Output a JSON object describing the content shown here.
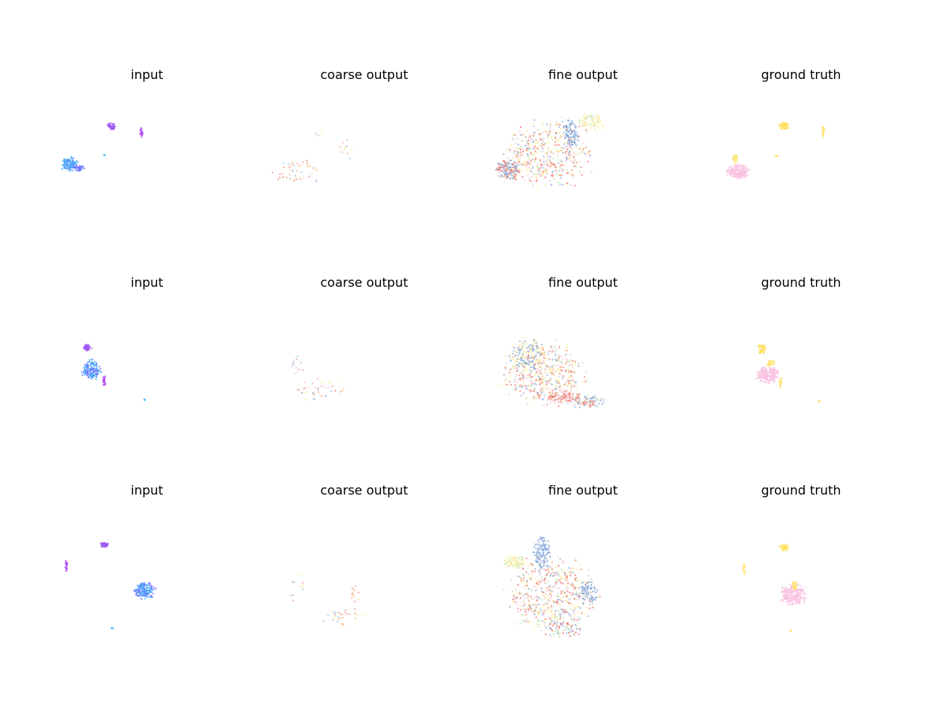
{
  "figure": {
    "rows": [
      {
        "titles": [
          "input",
          "coarse output",
          "fine output",
          "ground truth"
        ]
      },
      {
        "titles": [
          "input",
          "coarse output",
          "fine output",
          "ground truth"
        ]
      },
      {
        "titles": [
          "input",
          "coarse output",
          "fine output",
          "ground truth"
        ]
      }
    ]
  },
  "chart_data": {
    "type": "scatter",
    "description_note": "",
    "grid": false,
    "axes_visible": false,
    "panels": [
      {
        "row": 0,
        "col": 0,
        "title": "input",
        "clusters": [
          {
            "cx": 22,
            "cy": 93,
            "rx": 12,
            "ry": 10,
            "n": 140,
            "colors": [
              "#4fb7ff",
              "#6f8bff",
              "#3fa9f5"
            ]
          },
          {
            "cx": 35,
            "cy": 98,
            "rx": 8,
            "ry": 4,
            "n": 40,
            "colors": [
              "#7a6cff",
              "#6f8bff"
            ]
          },
          {
            "cx": 75,
            "cy": 45,
            "rx": 6,
            "ry": 5,
            "n": 45,
            "colors": [
              "#a05cf5",
              "#9a55f0"
            ]
          },
          {
            "cx": 113,
            "cy": 52,
            "rx": 2,
            "ry": 8,
            "n": 25,
            "colors": [
              "#b04ef2"
            ]
          },
          {
            "cx": 66,
            "cy": 81,
            "rx": 1.5,
            "ry": 1,
            "n": 4,
            "colors": [
              "#3fc0ff"
            ]
          }
        ]
      },
      {
        "row": 0,
        "col": 1,
        "title": "coarse output",
        "clusters": [
          {
            "cx": 35,
            "cy": 102,
            "rx": 36,
            "ry": 18,
            "n": 45,
            "colors": [
              "#f7b58f",
              "#f1a3a3",
              "#a6c4ea",
              "#ffe59a",
              "#f58f7c"
            ]
          },
          {
            "cx": 100,
            "cy": 70,
            "rx": 14,
            "ry": 18,
            "n": 10,
            "colors": [
              "#f7b58f",
              "#ffe59a",
              "#a6c4ea"
            ]
          },
          {
            "cx": 60,
            "cy": 55,
            "rx": 8,
            "ry": 4,
            "n": 4,
            "colors": [
              "#ffe59a",
              "#a6c4ea"
            ]
          }
        ]
      },
      {
        "row": 0,
        "col": 2,
        "title": "fine output",
        "clusters": [
          {
            "cx": 75,
            "cy": 80,
            "rx": 65,
            "ry": 50,
            "n": 500,
            "colors": [
              "#fffab0",
              "#ffe59a",
              "#f58f7c",
              "#9ab6e0",
              "#cfe8b8",
              "#d7d7d7",
              "#f7c6de",
              "#ef7d6d"
            ]
          },
          {
            "cx": 25,
            "cy": 100,
            "rx": 17,
            "ry": 14,
            "n": 180,
            "colors": [
              "#f58f7c",
              "#9ab6e0",
              "#7fa2d8",
              "#d7d7d7",
              "#ef7d6d"
            ]
          },
          {
            "cx": 105,
            "cy": 55,
            "rx": 12,
            "ry": 20,
            "n": 80,
            "colors": [
              "#9ab6e0",
              "#7fa2d8"
            ]
          },
          {
            "cx": 130,
            "cy": 40,
            "rx": 18,
            "ry": 14,
            "n": 80,
            "colors": [
              "#ffe59a",
              "#fffab0",
              "#cfe8b8"
            ]
          }
        ]
      },
      {
        "row": 0,
        "col": 3,
        "title": "ground truth",
        "clusters": [
          {
            "cx": 40,
            "cy": 102,
            "rx": 16,
            "ry": 10,
            "n": 220,
            "colors": [
              "#f9c6e3",
              "#f7bfe0"
            ]
          },
          {
            "cx": 37,
            "cy": 86,
            "rx": 4,
            "ry": 6,
            "n": 30,
            "colors": [
              "#ffe46e"
            ]
          },
          {
            "cx": 98,
            "cy": 45,
            "rx": 7,
            "ry": 6,
            "n": 55,
            "colors": [
              "#ffe46e",
              "#ffdf5a"
            ]
          },
          {
            "cx": 148,
            "cy": 52,
            "rx": 2,
            "ry": 8,
            "n": 22,
            "colors": [
              "#ffe46e"
            ]
          },
          {
            "cx": 88,
            "cy": 82,
            "rx": 3,
            "ry": 1,
            "n": 5,
            "colors": [
              "#ffe46e"
            ]
          }
        ]
      },
      {
        "row": 1,
        "col": 0,
        "title": "input",
        "clusters": [
          {
            "cx": 50,
            "cy": 90,
            "rx": 14,
            "ry": 14,
            "n": 170,
            "colors": [
              "#4fb7ff",
              "#6f8bff",
              "#7a6cff",
              "#3fa9f5"
            ]
          },
          {
            "cx": 44,
            "cy": 62,
            "rx": 6,
            "ry": 5,
            "n": 45,
            "colors": [
              "#a05cf5",
              "#9a55f0"
            ]
          },
          {
            "cx": 66,
            "cy": 104,
            "rx": 2.5,
            "ry": 8,
            "n": 25,
            "colors": [
              "#b04ef2"
            ]
          },
          {
            "cx": 117,
            "cy": 128,
            "rx": 2,
            "ry": 1,
            "n": 4,
            "colors": [
              "#3fc0ff"
            ]
          }
        ]
      },
      {
        "row": 1,
        "col": 1,
        "title": "coarse output",
        "clusters": [
          {
            "cx": 65,
            "cy": 115,
            "rx": 45,
            "ry": 18,
            "n": 40,
            "colors": [
              "#f7b58f",
              "#f1a3a3",
              "#a6c4ea",
              "#ffe59a",
              "#f5c6dc"
            ]
          },
          {
            "cx": 35,
            "cy": 85,
            "rx": 12,
            "ry": 20,
            "n": 12,
            "colors": [
              "#f1a3a3",
              "#a6c4ea",
              "#f7c6de"
            ]
          }
        ]
      },
      {
        "row": 1,
        "col": 2,
        "title": "fine output",
        "clusters": [
          {
            "cx": 70,
            "cy": 95,
            "rx": 60,
            "ry": 45,
            "n": 500,
            "colors": [
              "#fffab0",
              "#ffe59a",
              "#f58f7c",
              "#9ab6e0",
              "#cfe8b8",
              "#d7d7d7",
              "#f7c6de",
              "#ef7d6d"
            ]
          },
          {
            "cx": 50,
            "cy": 70,
            "rx": 25,
            "ry": 25,
            "n": 150,
            "colors": [
              "#9ab6e0",
              "#7fa2d8",
              "#ffe59a",
              "#fffab0"
            ]
          },
          {
            "cx": 125,
            "cy": 130,
            "rx": 25,
            "ry": 10,
            "n": 100,
            "colors": [
              "#d7d7d7",
              "#c9d9c0",
              "#9ab6e0",
              "#ef7d6d"
            ]
          },
          {
            "cx": 95,
            "cy": 125,
            "rx": 25,
            "ry": 8,
            "n": 80,
            "colors": [
              "#ef7d6d",
              "#f58f7c",
              "#f7c6de"
            ]
          }
        ]
      },
      {
        "row": 1,
        "col": 3,
        "title": "ground truth",
        "clusters": [
          {
            "cx": 78,
            "cy": 96,
            "rx": 17,
            "ry": 12,
            "n": 220,
            "colors": [
              "#f9c6e3",
              "#f7bfe0"
            ]
          },
          {
            "cx": 71,
            "cy": 64,
            "rx": 7,
            "ry": 7,
            "n": 50,
            "colors": [
              "#ffe46e",
              "#ffdf5a"
            ]
          },
          {
            "cx": 82,
            "cy": 82,
            "rx": 6,
            "ry": 5,
            "n": 30,
            "colors": [
              "#ffe46e"
            ]
          },
          {
            "cx": 94,
            "cy": 106,
            "rx": 2,
            "ry": 8,
            "n": 22,
            "colors": [
              "#ffe46e"
            ]
          },
          {
            "cx": 143,
            "cy": 130,
            "rx": 3,
            "ry": 1,
            "n": 4,
            "colors": [
              "#ffe46e"
            ]
          }
        ]
      },
      {
        "row": 2,
        "col": 0,
        "title": "input",
        "clusters": [
          {
            "cx": 117,
            "cy": 106,
            "rx": 15,
            "ry": 13,
            "n": 170,
            "colors": [
              "#4fb7ff",
              "#6f8bff",
              "#7a6cff",
              "#3fa9f5"
            ]
          },
          {
            "cx": 66,
            "cy": 49,
            "rx": 6,
            "ry": 4,
            "n": 40,
            "colors": [
              "#a05cf5",
              "#9a55f0"
            ]
          },
          {
            "cx": 18,
            "cy": 75,
            "rx": 2,
            "ry": 9,
            "n": 22,
            "colors": [
              "#b04ef2"
            ]
          },
          {
            "cx": 76,
            "cy": 154,
            "rx": 2,
            "ry": 1,
            "n": 4,
            "colors": [
              "#3fc0ff"
            ]
          }
        ]
      },
      {
        "row": 2,
        "col": 1,
        "title": "coarse output",
        "clusters": [
          {
            "cx": 95,
            "cy": 140,
            "rx": 30,
            "ry": 14,
            "n": 30,
            "colors": [
              "#f7b58f",
              "#f1a3a3",
              "#a6c4ea",
              "#ffe59a"
            ]
          },
          {
            "cx": 108,
            "cy": 110,
            "rx": 12,
            "ry": 14,
            "n": 14,
            "colors": [
              "#f7b58f",
              "#f1a3a3",
              "#ffe59a"
            ]
          },
          {
            "cx": 35,
            "cy": 100,
            "rx": 15,
            "ry": 30,
            "n": 10,
            "colors": [
              "#f1a3a3",
              "#a6c4ea",
              "#ffe59a"
            ]
          }
        ]
      },
      {
        "row": 2,
        "col": 2,
        "title": "fine output",
        "clusters": [
          {
            "cx": 80,
            "cy": 110,
            "rx": 65,
            "ry": 55,
            "n": 520,
            "colors": [
              "#fffab0",
              "#ffe59a",
              "#f58f7c",
              "#9ab6e0",
              "#cfe8b8",
              "#d7d7d7",
              "#f7c6de",
              "#ef7d6d"
            ]
          },
          {
            "cx": 68,
            "cy": 60,
            "rx": 12,
            "ry": 25,
            "n": 110,
            "colors": [
              "#9ab6e0",
              "#7fa2d8"
            ]
          },
          {
            "cx": 35,
            "cy": 70,
            "rx": 18,
            "ry": 10,
            "n": 80,
            "colors": [
              "#ffe59a",
              "#cfe8b8",
              "#fffab0"
            ]
          },
          {
            "cx": 128,
            "cy": 110,
            "rx": 14,
            "ry": 20,
            "n": 100,
            "colors": [
              "#7fa2d8",
              "#9ab6e0",
              "#d7d7d7"
            ]
          },
          {
            "cx": 95,
            "cy": 150,
            "rx": 30,
            "ry": 20,
            "n": 100,
            "colors": [
              "#d7d7d7",
              "#9ab6e0",
              "#ef7d6d",
              "#cfe8b8"
            ]
          }
        ]
      },
      {
        "row": 2,
        "col": 3,
        "title": "ground truth",
        "clusters": [
          {
            "cx": 110,
            "cy": 112,
            "rx": 19,
            "ry": 15,
            "n": 230,
            "colors": [
              "#f9c6e3",
              "#f7bfe0"
            ]
          },
          {
            "cx": 98,
            "cy": 52,
            "rx": 7,
            "ry": 5,
            "n": 45,
            "colors": [
              "#ffe46e",
              "#ffdf5a"
            ]
          },
          {
            "cx": 112,
            "cy": 100,
            "rx": 4,
            "ry": 6,
            "n": 25,
            "colors": [
              "#ffe46e"
            ]
          },
          {
            "cx": 48,
            "cy": 79,
            "rx": 2,
            "ry": 9,
            "n": 20,
            "colors": [
              "#ffe46e"
            ]
          },
          {
            "cx": 106,
            "cy": 158,
            "rx": 2,
            "ry": 1,
            "n": 4,
            "colors": [
              "#ffe46e"
            ]
          }
        ]
      }
    ]
  }
}
